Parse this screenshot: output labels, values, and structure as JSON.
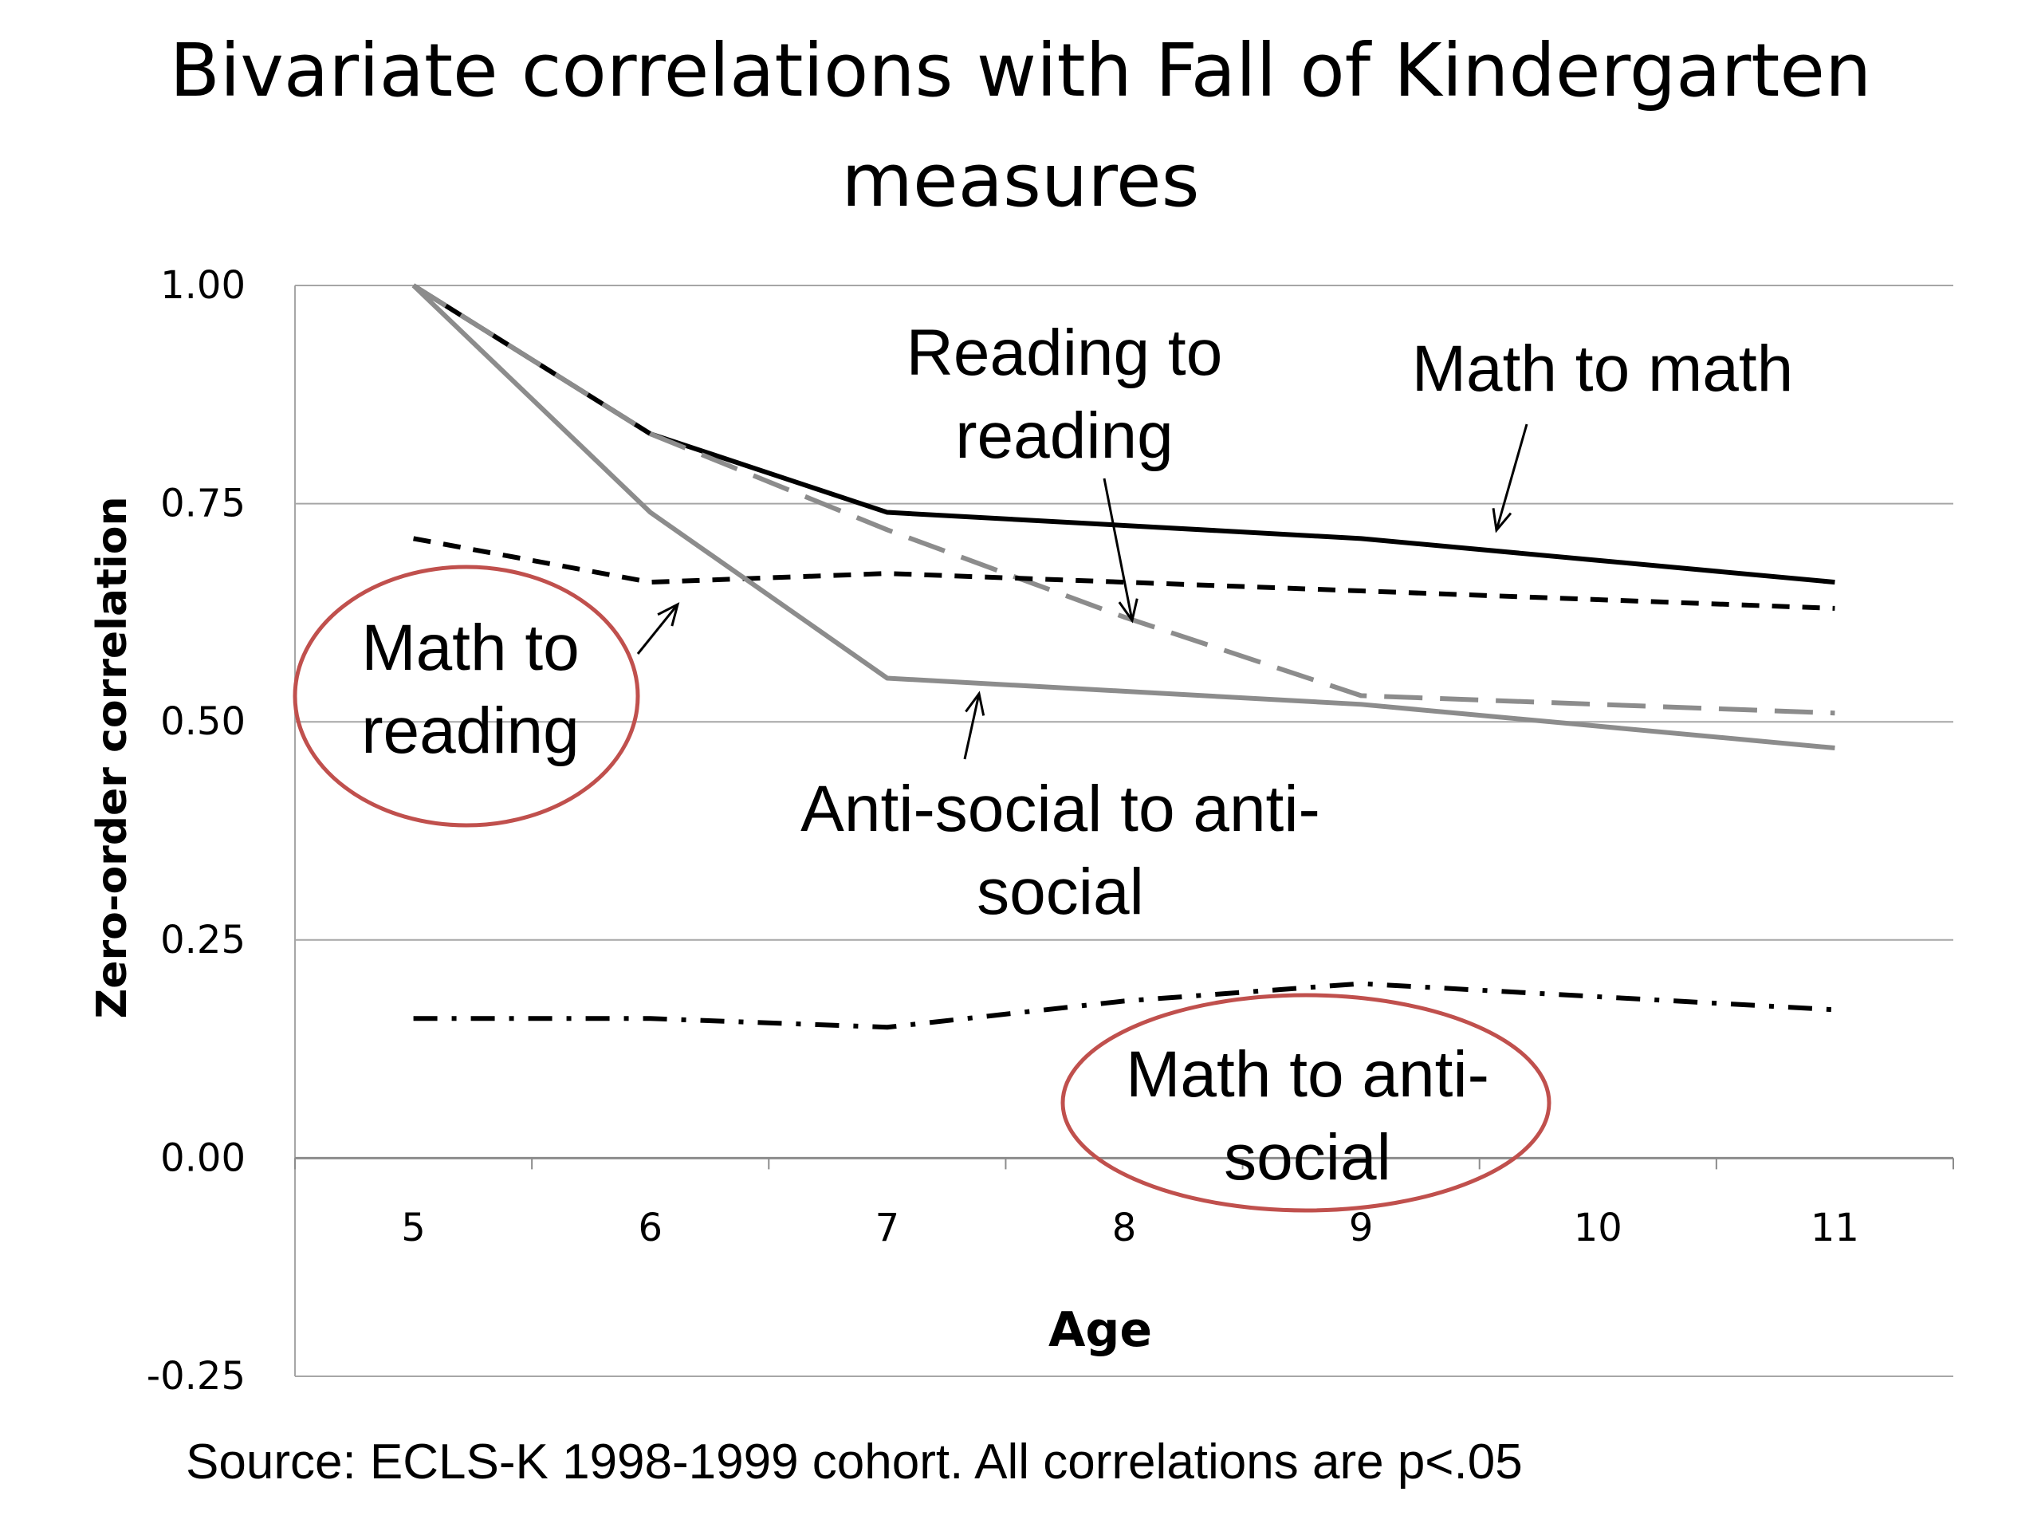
{
  "chart_data": {
    "type": "line",
    "title_lines": [
      "Bivariate correlations with Fall of Kindergarten",
      "measures"
    ],
    "xlabel": "Age",
    "ylabel": "Zero-order correlation",
    "x": [
      5,
      6,
      7,
      8,
      9,
      10,
      11
    ],
    "ylim": [
      -0.25,
      1.0
    ],
    "yticks": [
      "1.00",
      "0.75",
      "0.50",
      "0.25",
      "0.00",
      "-0.25"
    ],
    "grid": true,
    "legend": "none",
    "series": [
      {
        "name": "Math to math",
        "label_lines": [
          "Math to math"
        ],
        "values": [
          1.0,
          0.83,
          0.74,
          0.725,
          0.71,
          0.685,
          0.66
        ],
        "color": "#000000",
        "style": "solid"
      },
      {
        "name": "Reading to reading",
        "label_lines": [
          "Reading to",
          "reading"
        ],
        "values": [
          1.0,
          0.83,
          0.72,
          0.62,
          0.53,
          0.52,
          0.51
        ],
        "color": "#8c8c8c",
        "style": "dashed"
      },
      {
        "name": "Math to reading",
        "label_lines": [
          "Math to",
          "reading"
        ],
        "values": [
          0.71,
          0.66,
          0.67,
          0.66,
          0.65,
          0.64,
          0.63
        ],
        "color": "#000000",
        "style": "short-dashed"
      },
      {
        "name": "Anti-social to anti-social",
        "label_lines": [
          "Anti-social to anti-",
          "social"
        ],
        "values": [
          1.0,
          0.74,
          0.55,
          0.535,
          0.52,
          0.495,
          0.47
        ],
        "color": "#8c8c8c",
        "style": "solid"
      },
      {
        "name": "Math to anti-social",
        "label_lines": [
          "Math to anti-",
          "social"
        ],
        "values": [
          0.16,
          0.16,
          0.15,
          0.18,
          0.2,
          0.185,
          0.17
        ],
        "color": "#000000",
        "style": "dash-dot"
      }
    ],
    "highlight_color": "#c0504d",
    "source": "Source: ECLS-K 1998-1999 cohort. All correlations are p<.05"
  }
}
